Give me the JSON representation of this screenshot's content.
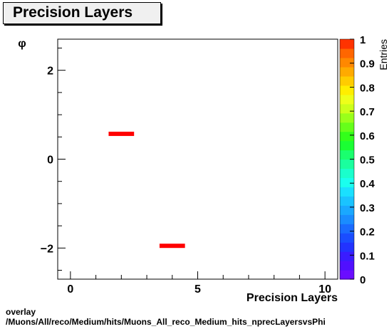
{
  "title": "Precision Layers",
  "footer": {
    "line1": "overlay",
    "line2": "/Muons/All/reco/Medium/hits/Muons_All_reco_Medium_hits_nprecLayersvsPhi"
  },
  "chart_data": {
    "type": "heatmap",
    "title": "Precision Layers",
    "xlabel": "Precision Layers",
    "ylabel": "φ",
    "zlabel": "Entries",
    "xlim": [
      -0.5,
      10.5
    ],
    "ylim": [
      -2.7,
      2.7
    ],
    "zlim": [
      0,
      1
    ],
    "x_ticks": [
      {
        "value": 0,
        "label": "0"
      },
      {
        "value": 5,
        "label": "5"
      },
      {
        "value": 10,
        "label": "10"
      }
    ],
    "y_ticks": [
      {
        "value": -2,
        "label": "−2"
      },
      {
        "value": 0,
        "label": "0"
      },
      {
        "value": 2,
        "label": "2"
      }
    ],
    "z_ticks": [
      "0",
      "0.1",
      "0.2",
      "0.3",
      "0.4",
      "0.5",
      "0.6",
      "0.7",
      "0.8",
      "0.9",
      "1"
    ],
    "cells": [
      {
        "x0": 1.5,
        "x1": 2.5,
        "y": 0.57,
        "value": 1
      },
      {
        "x0": 3.5,
        "x1": 4.5,
        "y": -1.95,
        "value": 1
      }
    ],
    "grid": false,
    "legend": "colorbar-right"
  }
}
